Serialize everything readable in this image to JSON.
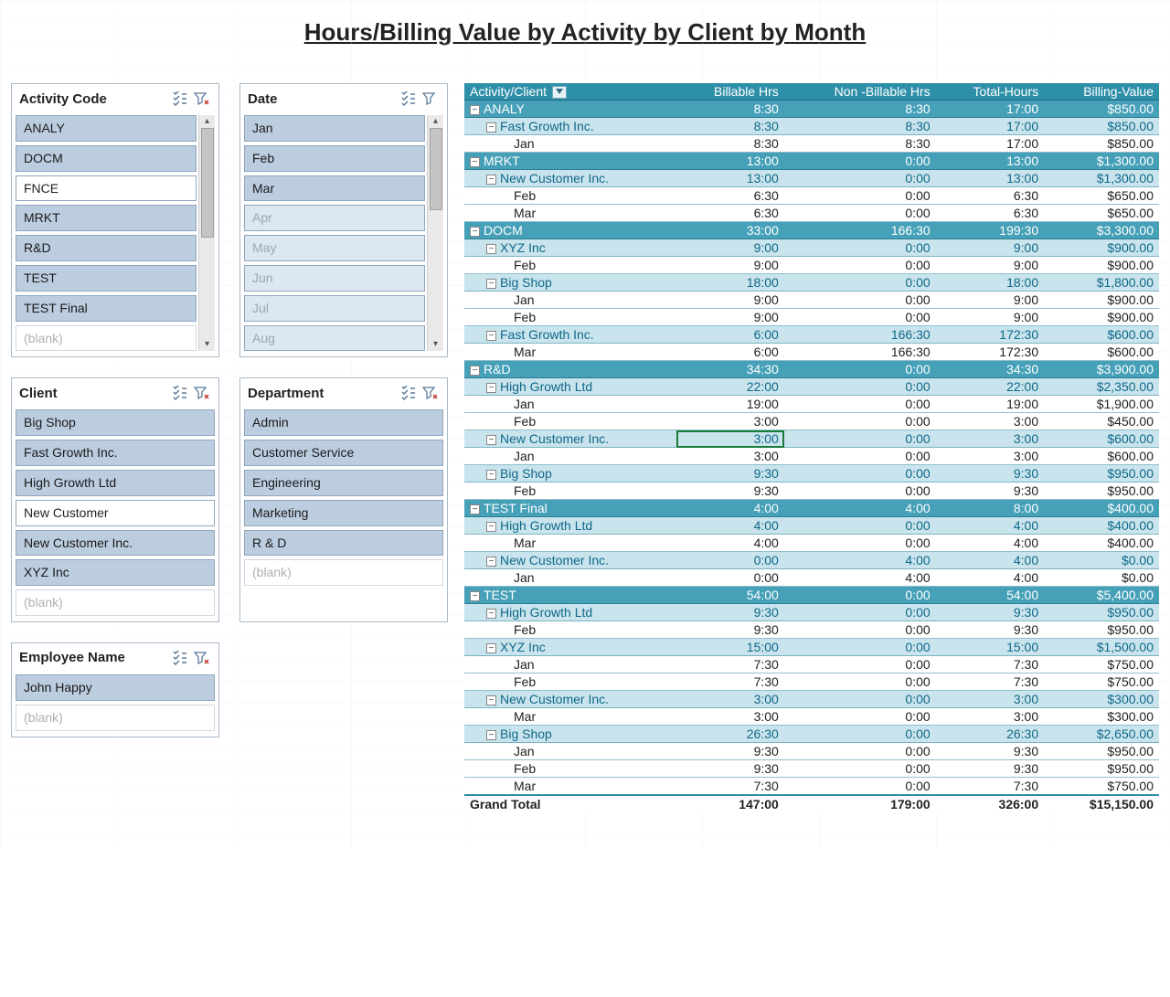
{
  "title": "Hours/Billing Value by Activity by Client by Month",
  "colors": {
    "header_bg": "#2e8fa8",
    "activity_bg": "#45a0b8",
    "client_bg": "#c9e4ec",
    "slicer_sel": "#bccde0",
    "slicer_dim": "#dde7f1"
  },
  "slicers": [
    {
      "key": "activity",
      "title": "Activity Code",
      "scroll": true,
      "thumb_h": 120,
      "items": [
        {
          "label": "ANALY",
          "state": "sel"
        },
        {
          "label": "DOCM",
          "state": "sel"
        },
        {
          "label": "FNCE",
          "state": "unsel"
        },
        {
          "label": "MRKT",
          "state": "sel"
        },
        {
          "label": "R&D",
          "state": "sel"
        },
        {
          "label": "TEST",
          "state": "sel"
        },
        {
          "label": "TEST Final",
          "state": "sel"
        },
        {
          "label": "(blank)",
          "state": "dim-unsel"
        }
      ]
    },
    {
      "key": "date",
      "title": "Date",
      "scroll": true,
      "thumb_h": 90,
      "items": [
        {
          "label": "Jan",
          "state": "sel"
        },
        {
          "label": "Feb",
          "state": "sel"
        },
        {
          "label": "Mar",
          "state": "sel"
        },
        {
          "label": "Apr",
          "state": "dim-sel"
        },
        {
          "label": "May",
          "state": "dim-sel"
        },
        {
          "label": "Jun",
          "state": "dim-sel"
        },
        {
          "label": "Jul",
          "state": "dim-sel"
        },
        {
          "label": "Aug",
          "state": "dim-sel"
        }
      ]
    },
    {
      "key": "client",
      "title": "Client",
      "scroll": false,
      "items": [
        {
          "label": "Big Shop",
          "state": "sel"
        },
        {
          "label": "Fast Growth Inc.",
          "state": "sel"
        },
        {
          "label": "High Growth Ltd",
          "state": "sel"
        },
        {
          "label": "New Customer",
          "state": "unsel"
        },
        {
          "label": "New Customer Inc.",
          "state": "sel"
        },
        {
          "label": "XYZ Inc",
          "state": "sel"
        },
        {
          "label": "(blank)",
          "state": "dim-unsel"
        }
      ]
    },
    {
      "key": "department",
      "title": "Department",
      "scroll": false,
      "items": [
        {
          "label": "Admin",
          "state": "sel"
        },
        {
          "label": "Customer Service",
          "state": "sel"
        },
        {
          "label": "Engineering",
          "state": "sel"
        },
        {
          "label": "Marketing",
          "state": "sel"
        },
        {
          "label": "R & D",
          "state": "sel"
        },
        {
          "label": "(blank)",
          "state": "dim-unsel"
        }
      ]
    },
    {
      "key": "employee",
      "title": "Employee Name",
      "scroll": false,
      "items": [
        {
          "label": "John Happy",
          "state": "sel"
        },
        {
          "label": "(blank)",
          "state": "dim-unsel"
        }
      ]
    }
  ],
  "pivot": {
    "columns": [
      "Activity/Client",
      "Billable Hrs",
      "Non -Billable Hrs",
      "Total-Hours",
      "Billing-Value"
    ],
    "selected_cell": [
      24,
      1
    ],
    "rows": [
      {
        "t": "activity",
        "label": "ANALY",
        "v": [
          "8:30",
          "8:30",
          "17:00",
          "$850.00"
        ]
      },
      {
        "t": "client",
        "label": "Fast Growth Inc.",
        "v": [
          "8:30",
          "8:30",
          "17:00",
          "$850.00"
        ]
      },
      {
        "t": "month",
        "label": "Jan",
        "v": [
          "8:30",
          "8:30",
          "17:00",
          "$850.00"
        ]
      },
      {
        "t": "activity",
        "label": "MRKT",
        "v": [
          "13:00",
          "0:00",
          "13:00",
          "$1,300.00"
        ]
      },
      {
        "t": "client",
        "label": "New Customer Inc.",
        "v": [
          "13:00",
          "0:00",
          "13:00",
          "$1,300.00"
        ]
      },
      {
        "t": "month",
        "label": "Feb",
        "v": [
          "6:30",
          "0:00",
          "6:30",
          "$650.00"
        ]
      },
      {
        "t": "month",
        "label": "Mar",
        "v": [
          "6:30",
          "0:00",
          "6:30",
          "$650.00"
        ]
      },
      {
        "t": "activity",
        "label": "DOCM",
        "v": [
          "33:00",
          "166:30",
          "199:30",
          "$3,300.00"
        ]
      },
      {
        "t": "client",
        "label": "XYZ Inc",
        "v": [
          "9:00",
          "0:00",
          "9:00",
          "$900.00"
        ]
      },
      {
        "t": "month",
        "label": "Feb",
        "v": [
          "9:00",
          "0:00",
          "9:00",
          "$900.00"
        ]
      },
      {
        "t": "client",
        "label": "Big Shop",
        "v": [
          "18:00",
          "0:00",
          "18:00",
          "$1,800.00"
        ]
      },
      {
        "t": "month",
        "label": "Jan",
        "v": [
          "9:00",
          "0:00",
          "9:00",
          "$900.00"
        ]
      },
      {
        "t": "month",
        "label": "Feb",
        "v": [
          "9:00",
          "0:00",
          "9:00",
          "$900.00"
        ]
      },
      {
        "t": "client",
        "label": "Fast Growth Inc.",
        "v": [
          "6:00",
          "166:30",
          "172:30",
          "$600.00"
        ]
      },
      {
        "t": "month",
        "label": "Mar",
        "v": [
          "6:00",
          "166:30",
          "172:30",
          "$600.00"
        ]
      },
      {
        "t": "activity",
        "label": "R&D",
        "v": [
          "34:30",
          "0:00",
          "34:30",
          "$3,900.00"
        ]
      },
      {
        "t": "client",
        "label": "High Growth Ltd",
        "v": [
          "22:00",
          "0:00",
          "22:00",
          "$2,350.00"
        ]
      },
      {
        "t": "month",
        "label": "Jan",
        "v": [
          "19:00",
          "0:00",
          "19:00",
          "$1,900.00"
        ]
      },
      {
        "t": "month",
        "label": "Feb",
        "v": [
          "3:00",
          "0:00",
          "3:00",
          "$450.00"
        ]
      },
      {
        "t": "client",
        "label": "New Customer Inc.",
        "v": [
          "3:00",
          "0:00",
          "3:00",
          "$600.00"
        ]
      },
      {
        "t": "month",
        "label": "Jan",
        "v": [
          "3:00",
          "0:00",
          "3:00",
          "$600.00"
        ]
      },
      {
        "t": "client",
        "label": "Big Shop",
        "v": [
          "9:30",
          "0:00",
          "9:30",
          "$950.00"
        ]
      },
      {
        "t": "month",
        "label": "Feb",
        "v": [
          "9:30",
          "0:00",
          "9:30",
          "$950.00"
        ]
      },
      {
        "t": "activity",
        "label": "TEST Final",
        "v": [
          "4:00",
          "4:00",
          "8:00",
          "$400.00"
        ]
      },
      {
        "t": "client",
        "label": "High Growth Ltd",
        "v": [
          "4:00",
          "0:00",
          "4:00",
          "$400.00"
        ]
      },
      {
        "t": "month",
        "label": "Mar",
        "v": [
          "4:00",
          "0:00",
          "4:00",
          "$400.00"
        ]
      },
      {
        "t": "client",
        "label": "New Customer Inc.",
        "v": [
          "0:00",
          "4:00",
          "4:00",
          "$0.00"
        ]
      },
      {
        "t": "month",
        "label": "Jan",
        "v": [
          "0:00",
          "4:00",
          "4:00",
          "$0.00"
        ]
      },
      {
        "t": "activity",
        "label": "TEST",
        "v": [
          "54:00",
          "0:00",
          "54:00",
          "$5,400.00"
        ]
      },
      {
        "t": "client",
        "label": "High Growth Ltd",
        "v": [
          "9:30",
          "0:00",
          "9:30",
          "$950.00"
        ]
      },
      {
        "t": "month",
        "label": "Feb",
        "v": [
          "9:30",
          "0:00",
          "9:30",
          "$950.00"
        ]
      },
      {
        "t": "client",
        "label": "XYZ Inc",
        "v": [
          "15:00",
          "0:00",
          "15:00",
          "$1,500.00"
        ]
      },
      {
        "t": "month",
        "label": "Jan",
        "v": [
          "7:30",
          "0:00",
          "7:30",
          "$750.00"
        ]
      },
      {
        "t": "month",
        "label": "Feb",
        "v": [
          "7:30",
          "0:00",
          "7:30",
          "$750.00"
        ]
      },
      {
        "t": "client",
        "label": "New Customer Inc.",
        "v": [
          "3:00",
          "0:00",
          "3:00",
          "$300.00"
        ]
      },
      {
        "t": "month",
        "label": "Mar",
        "v": [
          "3:00",
          "0:00",
          "3:00",
          "$300.00"
        ]
      },
      {
        "t": "client",
        "label": "Big Shop",
        "v": [
          "26:30",
          "0:00",
          "26:30",
          "$2,650.00"
        ]
      },
      {
        "t": "month",
        "label": "Jan",
        "v": [
          "9:30",
          "0:00",
          "9:30",
          "$950.00"
        ]
      },
      {
        "t": "month",
        "label": "Feb",
        "v": [
          "9:30",
          "0:00",
          "9:30",
          "$950.00"
        ]
      },
      {
        "t": "month",
        "label": "Mar",
        "v": [
          "7:30",
          "0:00",
          "7:30",
          "$750.00"
        ]
      },
      {
        "t": "total",
        "label": "Grand Total",
        "v": [
          "147:00",
          "179:00",
          "326:00",
          "$15,150.00"
        ]
      }
    ]
  }
}
